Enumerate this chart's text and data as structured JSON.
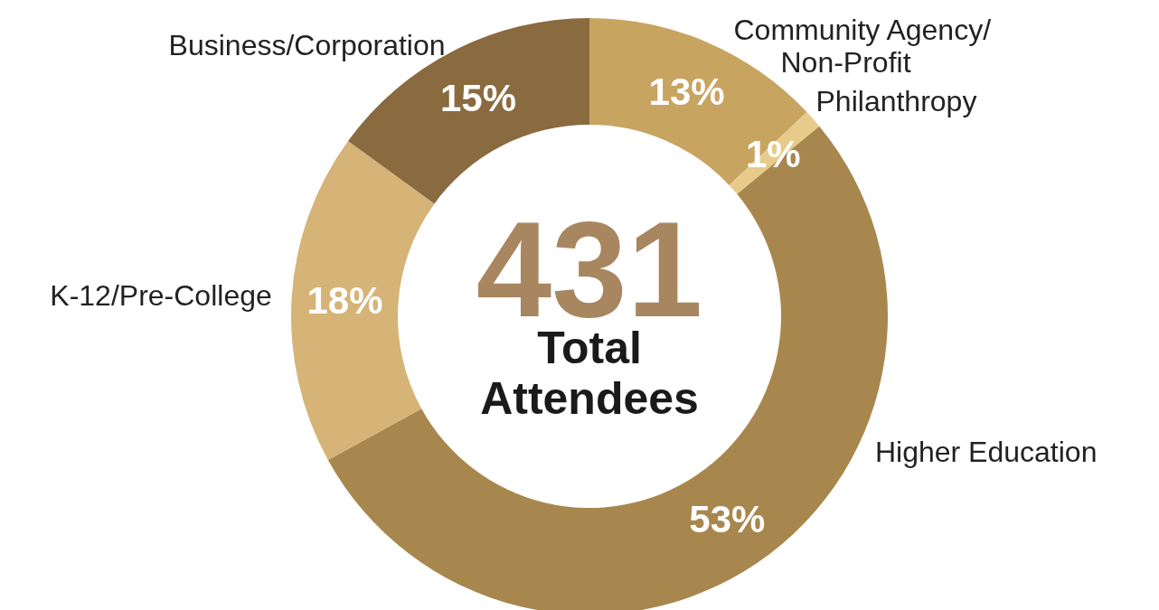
{
  "chart_data": {
    "type": "donut",
    "categories": [
      "Community Agency/Non-Profit",
      "Philanthropy",
      "Higher Education",
      "K-12/Pre-College",
      "Business/Corporation"
    ],
    "values": [
      13,
      1,
      53,
      18,
      15
    ],
    "colors": [
      "#c8a461",
      "#e8cb8a",
      "#a8874e",
      "#d6b377",
      "#8a6a3f"
    ],
    "value_labels": [
      "13%",
      "1%",
      "53%",
      "18%",
      "15%"
    ],
    "annotations": [
      "431",
      "Total Attendees"
    ],
    "legend": false
  }
}
